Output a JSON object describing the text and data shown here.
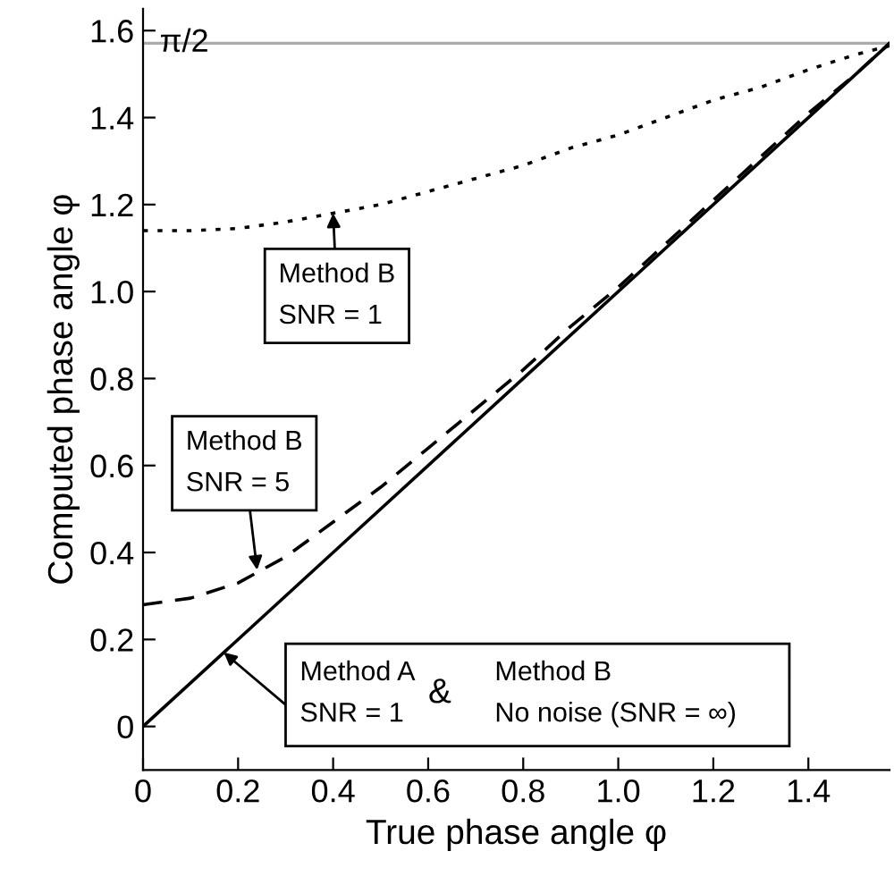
{
  "chart_data": {
    "type": "line",
    "xlabel": "True phase angle φ",
    "ylabel": "Computed phase angle φ",
    "xlim": [
      0,
      1.5708
    ],
    "ylim": [
      -0.1,
      1.65
    ],
    "xticks": [
      0,
      0.2,
      0.4,
      0.6,
      0.8,
      {
        "value": 1.0,
        "label": "1.0"
      },
      1.2,
      1.4
    ],
    "yticks": [
      0,
      0.2,
      0.4,
      0.6,
      0.8,
      {
        "value": 1.0,
        "label": "1.0"
      },
      1.2,
      1.4,
      1.6
    ],
    "grid": false,
    "legend": false,
    "marker": "none",
    "series": [
      {
        "color": "#000000",
        "line_style": "solid",
        "x": [
          0,
          0.4,
          0.8,
          1.2,
          1.5708
        ],
        "values": [
          0,
          0.4,
          0.8,
          1.2,
          1.5708
        ]
      },
      {
        "color": "#000000",
        "line_style": "dashed",
        "x": [
          0,
          0.1,
          0.2,
          0.3,
          0.4,
          0.5,
          0.6,
          0.7,
          0.8,
          0.9,
          1.0,
          1.1,
          1.2,
          1.3,
          1.4,
          1.5,
          1.5708
        ],
        "values": [
          0.28,
          0.295,
          0.33,
          0.39,
          0.47,
          0.55,
          0.64,
          0.73,
          0.82,
          0.92,
          1.01,
          1.11,
          1.21,
          1.31,
          1.41,
          1.5,
          1.5708
        ]
      },
      {
        "color": "#000000",
        "line_style": "dotted",
        "x": [
          0,
          0.1,
          0.2,
          0.3,
          0.4,
          0.5,
          0.6,
          0.7,
          0.8,
          0.9,
          1.0,
          1.1,
          1.2,
          1.3,
          1.4,
          1.5,
          1.5708
        ],
        "values": [
          1.14,
          1.14,
          1.145,
          1.16,
          1.18,
          1.2,
          1.23,
          1.26,
          1.29,
          1.33,
          1.36,
          1.4,
          1.44,
          1.47,
          1.51,
          1.545,
          1.565
        ]
      }
    ],
    "ref_lines": [
      {
        "axis": "y",
        "value": 1.5708,
        "label": "π/2",
        "color": "#aaaaaa"
      }
    ],
    "annotations": [
      {
        "text": "Method B\nSNR = 1",
        "x": 0.4,
        "y": 1.18
      },
      {
        "text": "Method B\nSNR = 5",
        "x": 0.24,
        "y": 0.36
      },
      {
        "text": "Method A\nSNR = 1",
        "x": 0.17,
        "y": 0.17
      },
      "&",
      "Method B\nNo noise (SNR = ∞)"
    ]
  }
}
